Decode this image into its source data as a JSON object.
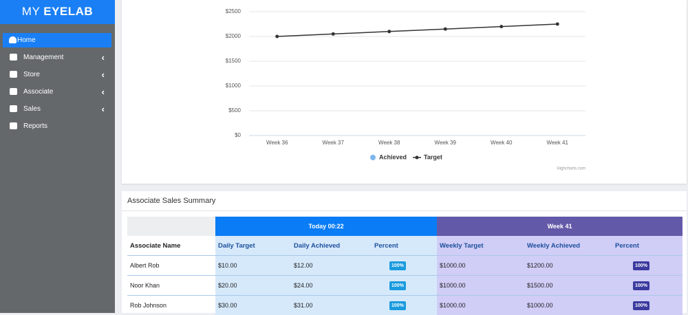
{
  "brand": {
    "prefix": "MY",
    "name": "EYELAB"
  },
  "nav": {
    "items": [
      "Home",
      "Management",
      "Store",
      "Associate",
      "Sales",
      "Reports"
    ]
  },
  "chart_data": {
    "type": "line",
    "categories": [
      "Week 36",
      "Week 37",
      "Week 38",
      "Week 39",
      "Week 40",
      "Week 41"
    ],
    "series": [
      {
        "name": "Achieved",
        "color": "#7cb5ec",
        "values": [
          null,
          null,
          null,
          null,
          null,
          null
        ]
      },
      {
        "name": "Target",
        "color": "#333333",
        "values": [
          2000,
          2050,
          2100,
          2150,
          2200,
          2250
        ]
      }
    ],
    "ylim": [
      0,
      2500
    ],
    "yticks": [
      {
        "value": 0,
        "label": "$0"
      },
      {
        "value": 500,
        "label": "$500"
      },
      {
        "value": 1000,
        "label": "$1000"
      },
      {
        "value": 1500,
        "label": "$1500"
      },
      {
        "value": 2000,
        "label": "$2000"
      },
      {
        "value": 2500,
        "label": "$2500"
      }
    ],
    "grid": true,
    "legend": "bottom",
    "credit": "Highcharts.com"
  },
  "table": {
    "title": "Associate Sales Summary",
    "groups": [
      "Today 00:22",
      "Week 41"
    ],
    "columns": [
      "Associate Name",
      "Daily Target",
      "Daily Achieved",
      "Percent",
      "Weekly Target",
      "Weekly Achieved",
      "Percent"
    ],
    "rows": [
      [
        "Albert Rob",
        "$10.00",
        "$12.00",
        "100%",
        "$1000.00",
        "$1200.00",
        "100%"
      ],
      [
        "Noor Khan",
        "$20.00",
        "$24.00",
        "100%",
        "$1000.00",
        "$1500.00",
        "100%"
      ],
      [
        "Rob Johnson",
        "$30.00",
        "$31.00",
        "100%",
        "$1000.00",
        "$1000.00",
        "100%"
      ]
    ]
  }
}
